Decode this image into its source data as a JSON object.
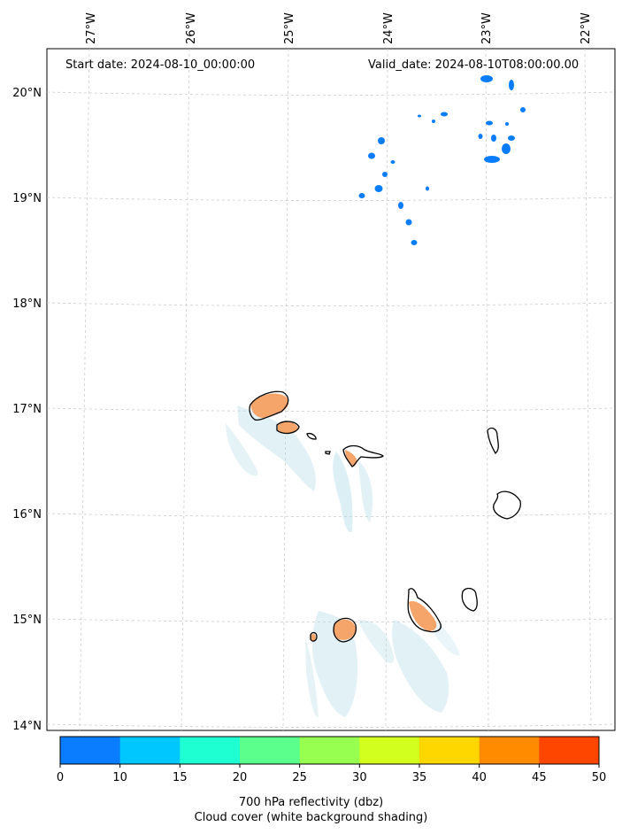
{
  "header": {
    "start_date": "Start date: 2024-08-10_00:00:00",
    "valid_date": "Valid_date: 2024-08-10T08:00:00.00"
  },
  "axes": {
    "lon_labels": [
      "27°W",
      "26°W",
      "25°W",
      "24°W",
      "23°W",
      "22°W"
    ],
    "lat_labels": [
      "20°N",
      "19°N",
      "18°N",
      "17°N",
      "16°N",
      "15°N",
      "14°N"
    ]
  },
  "colorbar": {
    "ticks": [
      "0",
      "10",
      "15",
      "20",
      "25",
      "30",
      "35",
      "40",
      "45",
      "50"
    ],
    "colors": [
      "#0a7dff",
      "#00c8ff",
      "#1effd2",
      "#5aff8c",
      "#96ff50",
      "#d2ff1e",
      "#ffd700",
      "#ff8c00",
      "#ff4600"
    ],
    "label_line1": "700 hPa reflectivity (dbz)",
    "label_line2": "Cloud cover (white background shading)"
  },
  "map_colors": {
    "reflectivity_low": "#0a7dff",
    "reflectivity_high": "#f5a46a",
    "cloud_shade": "#a8d6e6"
  }
}
